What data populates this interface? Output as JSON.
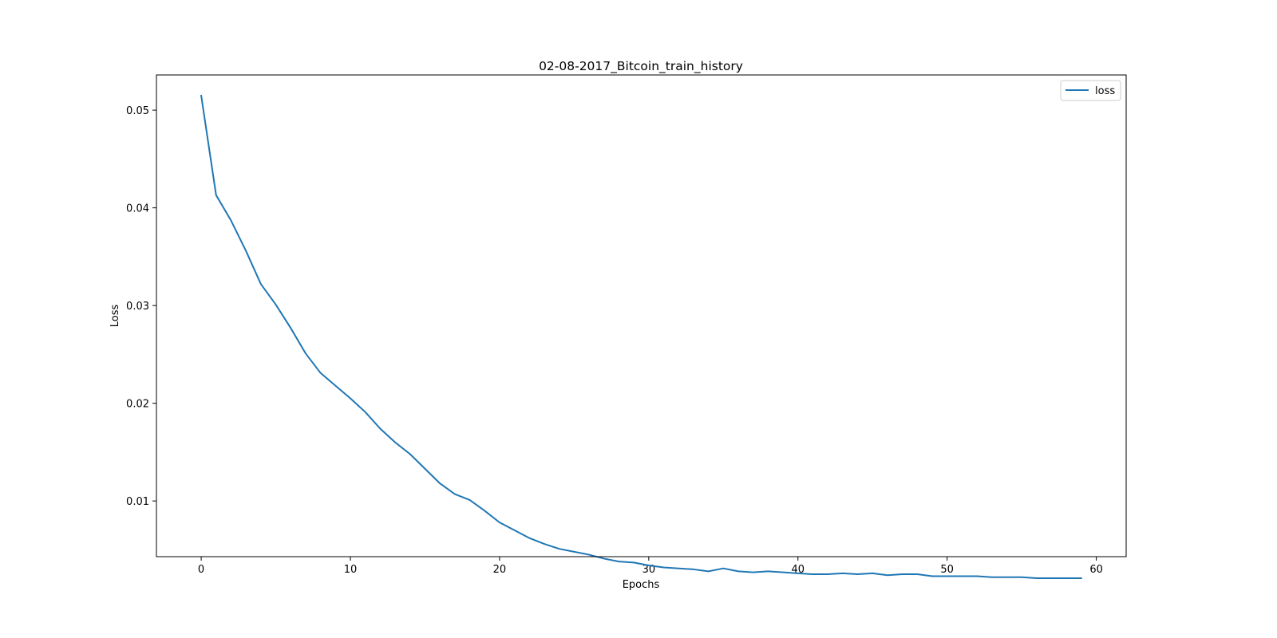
{
  "chart_data": {
    "type": "line",
    "title": "02-08-2017_Bitcoin_train_history",
    "xlabel": "Epochs",
    "ylabel": "Loss",
    "xlim": [
      -3,
      62
    ],
    "ylim": [
      0.0043,
      0.0536
    ],
    "xticks": [
      0,
      10,
      20,
      30,
      40,
      50,
      60
    ],
    "yticks": [
      0.01,
      0.02,
      0.03,
      0.04,
      0.05
    ],
    "ytick_labels": [
      "0.01",
      "0.02",
      "0.03",
      "0.04",
      "0.05"
    ],
    "grid": false,
    "legend": {
      "position": "upper right",
      "entries": [
        "loss"
      ]
    },
    "series": [
      {
        "name": "loss",
        "color": "#1f77b4",
        "x": [
          0,
          1,
          2,
          3,
          4,
          5,
          6,
          7,
          8,
          9,
          10,
          11,
          12,
          13,
          14,
          15,
          16,
          17,
          18,
          19,
          20,
          21,
          22,
          23,
          24,
          25,
          26,
          27,
          28,
          29,
          30,
          31,
          32,
          33,
          34,
          35,
          36,
          37,
          38,
          39,
          40,
          41,
          42,
          43,
          44,
          45,
          46,
          47,
          48,
          49,
          50,
          51,
          52,
          53,
          54,
          55,
          56,
          57,
          58,
          59
        ],
        "values": [
          0.0515,
          0.0413,
          0.0387,
          0.0356,
          0.0322,
          0.0301,
          0.0277,
          0.0251,
          0.0231,
          0.0218,
          0.0205,
          0.0191,
          0.0174,
          0.016,
          0.0148,
          0.0133,
          0.0118,
          0.0107,
          0.0101,
          0.009,
          0.0078,
          0.007,
          0.0062,
          0.0056,
          0.0051,
          0.0048,
          0.0045,
          0.0041,
          0.0038,
          0.0037,
          0.0034,
          0.0032,
          0.0031,
          0.003,
          0.0028,
          0.0031,
          0.0028,
          0.0027,
          0.0028,
          0.0027,
          0.0026,
          0.0025,
          0.0025,
          0.0026,
          0.0025,
          0.0026,
          0.0024,
          0.0025,
          0.0025,
          0.0023,
          0.0023,
          0.0023,
          0.0023,
          0.0022,
          0.0022,
          0.0022,
          0.0021,
          0.0021,
          0.0021,
          0.0021
        ]
      }
    ]
  }
}
